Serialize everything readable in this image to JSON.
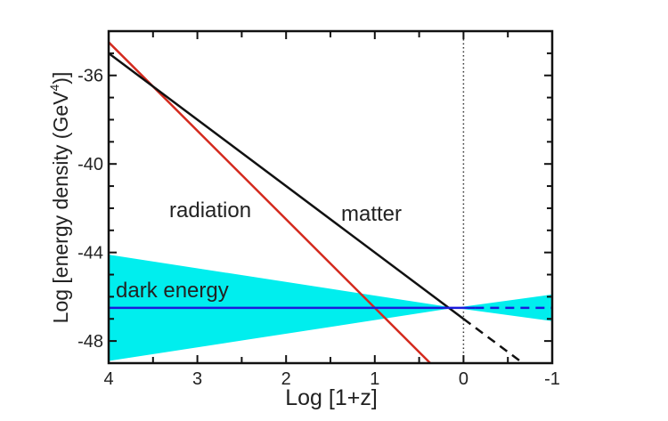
{
  "chart_data": {
    "type": "line",
    "title": "",
    "xlabel": "Log [1+z]",
    "ylabel": "Log [energy density (GeV",
    "ylabel_sup": "4",
    "ylabel_end": ")]",
    "xlim": [
      4,
      -1
    ],
    "ylim": [
      -49,
      -34
    ],
    "x_ticks": [
      4,
      3,
      2,
      1,
      0,
      -1
    ],
    "x_tick_labels": [
      "4",
      "3",
      "2",
      "1",
      "0",
      "-1"
    ],
    "y_ticks": [
      -36,
      -40,
      -44,
      -48
    ],
    "y_tick_labels": [
      "-36",
      "-40",
      "-44",
      "-48"
    ],
    "grid": false,
    "reference_line": {
      "x": 0,
      "style": "dotted"
    },
    "series": [
      {
        "name": "radiation",
        "color": "#d42a1e",
        "points": [
          [
            4.1,
            -34.1
          ],
          [
            0.375,
            -49
          ]
        ],
        "style": "solid"
      },
      {
        "name": "matter",
        "color": "#111111",
        "points": [
          [
            4,
            -35
          ],
          [
            0,
            -47
          ]
        ],
        "dashed_points": [
          [
            0,
            -47
          ],
          [
            -0.67,
            -49
          ]
        ],
        "style": "solid"
      },
      {
        "name": "dark energy",
        "color": "#1a1adc",
        "points": [
          [
            4,
            -46.5
          ],
          [
            -0.13,
            -46.5
          ]
        ],
        "dashed_points": [
          [
            -0.13,
            -46.5
          ],
          [
            -1,
            -46.5
          ]
        ],
        "style": "solid",
        "band_color": "#00eeee",
        "band": {
          "x": [
            4,
            0.1,
            -1
          ],
          "upper": [
            -44.1,
            -46.5,
            -45.9
          ],
          "lower": [
            -48.9,
            -46.5,
            -47.1
          ]
        }
      }
    ]
  }
}
